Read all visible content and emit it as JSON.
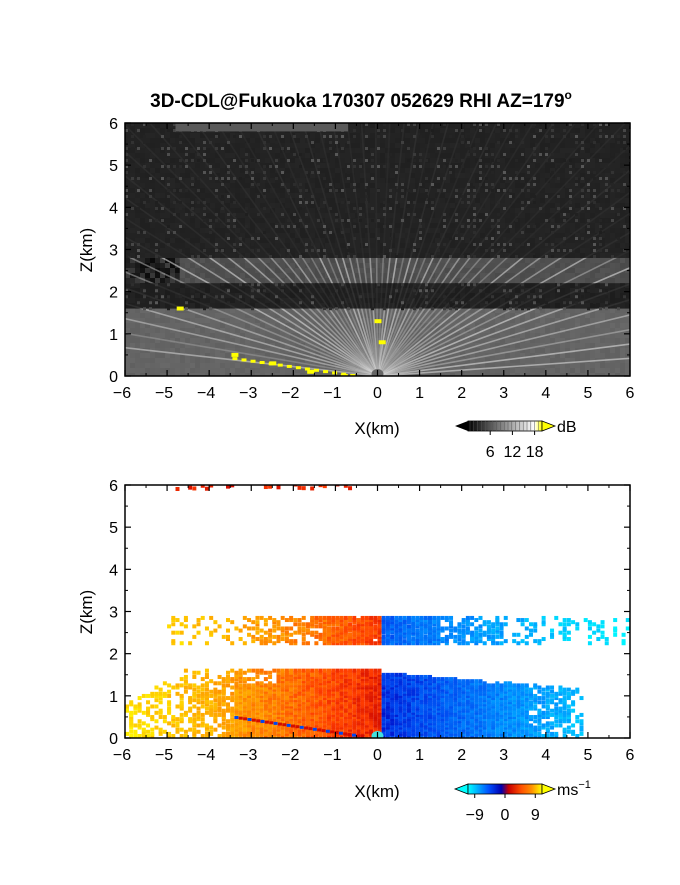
{
  "title": "3D-CDL@Fukuoka 170307 052629 RHI AZ=179",
  "title_superscript": "o",
  "chart_data": [
    {
      "type": "heatmap",
      "panel": "reflectivity",
      "xlabel": "X(km)",
      "ylabel": "Z(km)",
      "xlim": [
        -6,
        6
      ],
      "ylim": [
        0,
        6
      ],
      "xticks": [
        -6,
        -5,
        -4,
        -3,
        -2,
        -1,
        0,
        1,
        2,
        3,
        4,
        5,
        6
      ],
      "yticks": [
        0,
        1,
        2,
        3,
        4,
        5,
        6
      ],
      "colorbar": {
        "unit": "dB",
        "ticks": [
          6,
          12,
          18
        ],
        "range": [
          0,
          20
        ],
        "colors": [
          "#000000",
          "#ffffff",
          "#ffff00"
        ]
      },
      "features": [
        {
          "name": "lower aerosol layer",
          "z_range": [
            0,
            1.6
          ],
          "x_range": [
            -6,
            6
          ],
          "level_db": 12
        },
        {
          "name": "upper aerosol layer",
          "z_range": [
            2.2,
            2.8
          ],
          "x_range": [
            -4.7,
            6
          ],
          "level_db": 8
        },
        {
          "name": "strong echo along slope",
          "points": [
            [
              -4.7,
              1.6
            ],
            [
              -3.4,
              0.5
            ],
            [
              -2.5,
              0.3
            ],
            [
              -1.6,
              0.1
            ],
            [
              -0.8,
              0.0
            ],
            [
              0.0,
              1.3
            ],
            [
              0.1,
              0.8
            ]
          ],
          "level_db": 19
        }
      ]
    },
    {
      "type": "heatmap",
      "panel": "doppler velocity",
      "xlabel": "X(km)",
      "ylabel": "Z(km)",
      "xlim": [
        -6,
        6
      ],
      "ylim": [
        0,
        6
      ],
      "xticks": [
        -6,
        -5,
        -4,
        -3,
        -2,
        -1,
        0,
        1,
        2,
        3,
        4,
        5,
        6
      ],
      "yticks": [
        0,
        1,
        2,
        3,
        4,
        5,
        6
      ],
      "colorbar": {
        "unit": "ms",
        "unit_exponent": "−1",
        "tick_labels": [
          "−9",
          "0",
          "9"
        ],
        "ticks": [
          -9,
          0,
          9
        ],
        "range": [
          -11,
          11
        ],
        "colors": [
          "#00ffff",
          "#0050ff",
          "#0000b0",
          "#c80000",
          "#ff4000",
          "#ff9000",
          "#ffff00"
        ]
      },
      "features": [
        {
          "name": "lower layer westward",
          "x_range": [
            -6,
            0
          ],
          "z_range": [
            0,
            1.6
          ],
          "velocity": [
            3,
            8
          ]
        },
        {
          "name": "lower layer eastward",
          "x_range": [
            0,
            6
          ],
          "z_range": [
            0,
            1.5
          ],
          "velocity": [
            -8,
            -2
          ]
        },
        {
          "name": "upper layer westward",
          "x_range": [
            -5,
            0
          ],
          "z_range": [
            2.2,
            2.8
          ],
          "velocity": [
            2,
            8
          ]
        },
        {
          "name": "upper layer eastward",
          "x_range": [
            0,
            6
          ],
          "z_range": [
            2.2,
            2.8
          ],
          "velocity": [
            -9,
            -4
          ]
        },
        {
          "name": "top return",
          "x_range": [
            -4.8,
            -0.7
          ],
          "z_range": [
            5.8,
            6.0
          ],
          "velocity": [
            1,
            3
          ]
        }
      ]
    }
  ]
}
